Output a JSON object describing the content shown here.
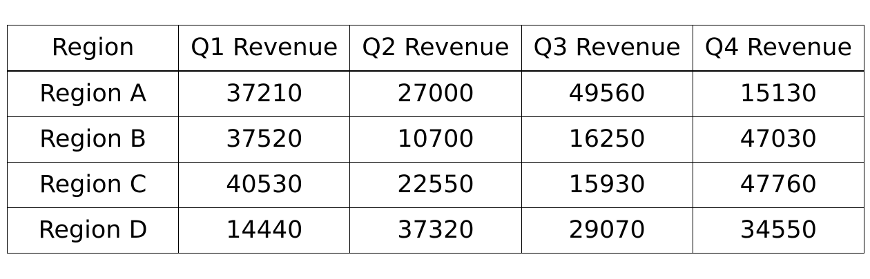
{
  "chart_data": {
    "type": "table",
    "columns": [
      "Region",
      "Q1 Revenue",
      "Q2 Revenue",
      "Q3 Revenue",
      "Q4 Revenue"
    ],
    "rows": [
      [
        "Region A",
        "37210",
        "27000",
        "49560",
        "15130"
      ],
      [
        "Region B",
        "37520",
        "10700",
        "16250",
        "47030"
      ],
      [
        "Region C",
        "40530",
        "22550",
        "15930",
        "47760"
      ],
      [
        "Region D",
        "14440",
        "37320",
        "29070",
        "34550"
      ]
    ]
  }
}
